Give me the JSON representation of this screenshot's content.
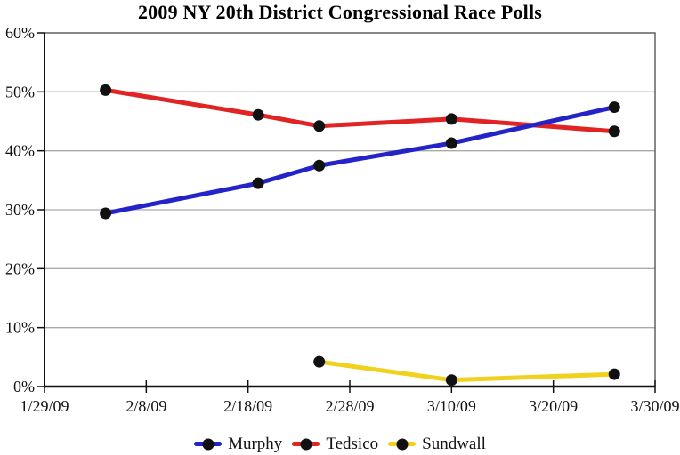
{
  "page": {
    "background": "#ffffff"
  },
  "chart_data": {
    "type": "line",
    "title": "2009 NY 20th District Congressional Race Polls",
    "x_axis": {
      "tick_labels": [
        "1/29/09",
        "2/8/09",
        "2/18/09",
        "2/28/09",
        "3/10/09",
        "3/20/09",
        "3/30/09"
      ],
      "tick_days": [
        0,
        10,
        20,
        30,
        40,
        50,
        60
      ],
      "range_days": [
        0,
        60
      ]
    },
    "y_axis": {
      "tick_labels": [
        "0%",
        "10%",
        "20%",
        "30%",
        "40%",
        "50%",
        "60%"
      ],
      "tick_values": [
        0,
        10,
        20,
        30,
        40,
        50,
        60
      ],
      "range": [
        0,
        60
      ],
      "unit": "percent"
    },
    "series": [
      {
        "name": "Murphy",
        "color": "#2323c8",
        "dates": [
          "2/4/09",
          "2/19/09",
          "2/25/09",
          "3/10/09",
          "3/26/09"
        ],
        "days": [
          6,
          21,
          27,
          40,
          56
        ],
        "values": [
          29.4,
          34.5,
          37.5,
          41.3,
          47.4
        ]
      },
      {
        "name": "Tedsico",
        "color": "#e02424",
        "dates": [
          "2/4/09",
          "2/19/09",
          "2/25/09",
          "3/10/09",
          "3/26/09"
        ],
        "days": [
          6,
          21,
          27,
          40,
          56
        ],
        "values": [
          50.3,
          46.1,
          44.2,
          45.4,
          43.3
        ]
      },
      {
        "name": "Sundwall",
        "color": "#f0d21e",
        "dates": [
          "2/25/09",
          "3/10/09",
          "3/26/09"
        ],
        "days": [
          27,
          40,
          56
        ],
        "values": [
          4.2,
          1.1,
          2.1
        ]
      }
    ],
    "marker_color": "#111111",
    "grid": "horizontal",
    "grid_color": "#aaaaaa",
    "frame_color": "#555555",
    "axis_color": "#111111",
    "legend": {
      "position": "bottom",
      "entries": [
        "Murphy",
        "Tedsico",
        "Sundwall"
      ]
    }
  }
}
